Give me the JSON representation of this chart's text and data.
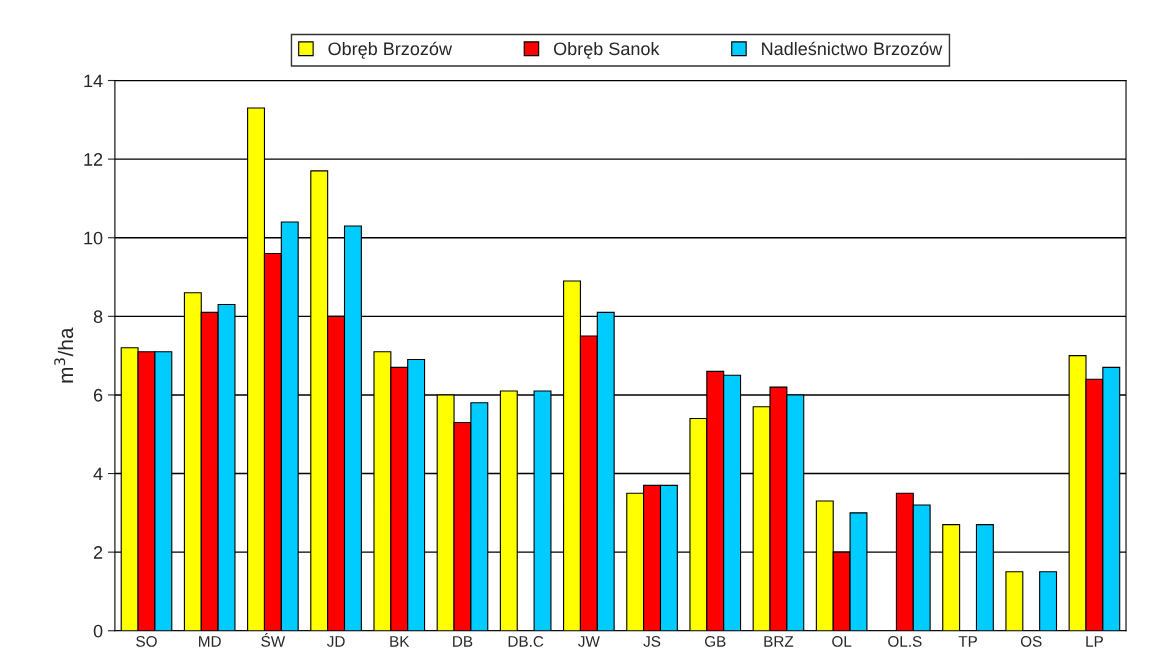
{
  "chart_data": {
    "type": "bar",
    "ylabel": "m$^{3}$/ha",
    "categories": [
      "SO",
      "MD",
      "ŚW",
      "JD",
      "BK",
      "DB",
      "DB.C",
      "JW",
      "JS",
      "GB",
      "BRZ",
      "OL",
      "OL.S",
      "TP",
      "OS",
      "LP"
    ],
    "series": [
      {
        "name": "Obręb Brzozów",
        "color": "#ffff00",
        "values": [
          7.2,
          8.6,
          13.3,
          11.7,
          7.1,
          6.0,
          6.1,
          8.9,
          3.5,
          5.4,
          5.7,
          3.3,
          null,
          2.7,
          1.5,
          7.0
        ]
      },
      {
        "name": "Obręb Sanok",
        "color": "#ff0000",
        "values": [
          7.1,
          8.1,
          9.6,
          8.0,
          6.7,
          5.3,
          null,
          7.5,
          3.7,
          6.6,
          6.2,
          2.0,
          3.5,
          null,
          null,
          6.4
        ]
      },
      {
        "name": "Nadleśnictwo Brzozów",
        "color": "#00ccff",
        "values": [
          7.1,
          8.3,
          10.4,
          10.3,
          6.9,
          5.8,
          6.1,
          8.1,
          3.7,
          6.5,
          6.0,
          3.0,
          3.2,
          2.7,
          1.5,
          6.7
        ]
      }
    ],
    "ylim": [
      0,
      14
    ],
    "yticks": [
      0,
      2,
      4,
      6,
      8,
      10,
      12,
      14
    ],
    "grid": "y",
    "legend": "top"
  }
}
